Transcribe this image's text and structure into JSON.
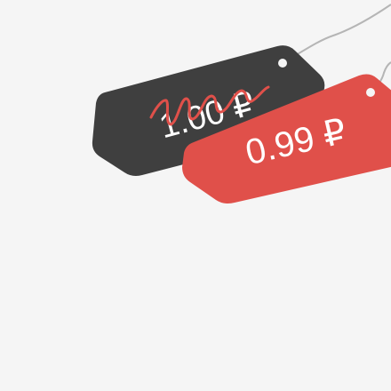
{
  "old_price_tag": {
    "price": "1.00 ₽",
    "color": "#3f3f3f",
    "state": "crossed-out"
  },
  "new_price_tag": {
    "price": "0.99 ₽",
    "color": "#e0504a"
  },
  "colors": {
    "background": "#f5f5f5",
    "string": "#b5b5b5",
    "strike": "#e0504a",
    "text": "#ffffff"
  }
}
